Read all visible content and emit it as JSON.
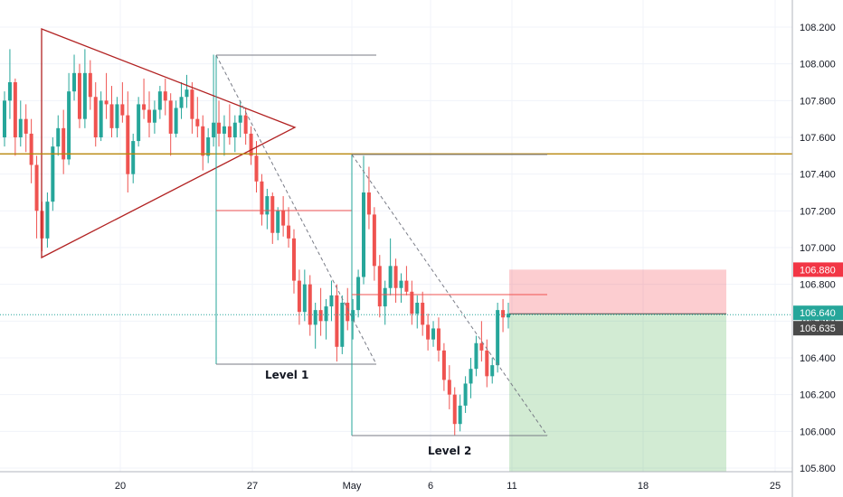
{
  "chart_data": {
    "type": "candlestick",
    "y_axis": {
      "position": "right",
      "range": [
        105.76,
        108.26
      ],
      "ticks": [
        "108.200",
        "108.000",
        "107.800",
        "107.600",
        "107.400",
        "107.200",
        "107.000",
        "106.800",
        "106.600",
        "106.400",
        "106.200",
        "106.000",
        "105.800"
      ]
    },
    "x_axis": {
      "ticks": [
        "20",
        "27",
        "May",
        "6",
        "11",
        "18",
        "25"
      ]
    },
    "grid": true,
    "price_labels": [
      {
        "value": "106.880",
        "role": "stop-loss",
        "color": "#f23645"
      },
      {
        "value": "106.640",
        "role": "entry",
        "color": "#26a69a"
      },
      {
        "value": "106.635",
        "role": "last-price",
        "color": "#4a4a4a"
      }
    ],
    "annotations": [
      "Level 1",
      "Level 2"
    ],
    "horizontal_level": 107.51,
    "candles": [
      [
        107.6,
        107.85,
        107.55,
        107.8
      ],
      [
        107.8,
        108.08,
        107.7,
        107.9
      ],
      [
        107.9,
        107.92,
        107.5,
        107.6
      ],
      [
        107.6,
        107.8,
        107.55,
        107.7
      ],
      [
        107.7,
        107.78,
        107.52,
        107.62
      ],
      [
        107.62,
        107.7,
        107.35,
        107.45
      ],
      [
        107.45,
        107.5,
        107.05,
        107.2
      ],
      [
        107.2,
        107.25,
        106.98,
        107.05
      ],
      [
        107.05,
        107.3,
        107.0,
        107.25
      ],
      [
        107.25,
        107.6,
        107.2,
        107.55
      ],
      [
        107.55,
        107.72,
        107.5,
        107.65
      ],
      [
        107.65,
        107.75,
        107.4,
        107.48
      ],
      [
        107.48,
        107.95,
        107.45,
        107.85
      ],
      [
        107.85,
        108.05,
        107.8,
        107.95
      ],
      [
        107.95,
        108.0,
        107.65,
        107.7
      ],
      [
        107.7,
        108.08,
        107.65,
        107.95
      ],
      [
        107.95,
        108.02,
        107.75,
        107.82
      ],
      [
        107.82,
        107.9,
        107.55,
        107.6
      ],
      [
        107.6,
        107.85,
        107.58,
        107.8
      ],
      [
        107.8,
        107.95,
        107.7,
        107.78
      ],
      [
        107.78,
        107.88,
        107.6,
        107.65
      ],
      [
        107.65,
        107.82,
        107.6,
        107.78
      ],
      [
        107.78,
        107.9,
        107.68,
        107.72
      ],
      [
        107.72,
        107.85,
        107.3,
        107.4
      ],
      [
        107.4,
        107.62,
        107.35,
        107.58
      ],
      [
        107.58,
        107.82,
        107.55,
        107.78
      ],
      [
        107.78,
        107.92,
        107.7,
        107.75
      ],
      [
        107.75,
        107.85,
        107.6,
        107.68
      ],
      [
        107.68,
        107.8,
        107.62,
        107.75
      ],
      [
        107.75,
        107.88,
        107.7,
        107.85
      ],
      [
        107.85,
        107.92,
        107.72,
        107.8
      ],
      [
        107.8,
        107.84,
        107.5,
        107.62
      ],
      [
        107.62,
        107.8,
        107.6,
        107.76
      ],
      [
        107.76,
        107.9,
        107.7,
        107.82
      ],
      [
        107.82,
        107.94,
        107.76,
        107.86
      ],
      [
        107.86,
        107.9,
        107.62,
        107.7
      ],
      [
        107.7,
        107.82,
        107.6,
        107.66
      ],
      [
        107.66,
        107.72,
        107.42,
        107.5
      ],
      [
        107.5,
        107.65,
        107.46,
        107.6
      ],
      [
        107.6,
        108.05,
        107.55,
        107.68
      ],
      [
        107.68,
        107.8,
        107.55,
        107.62
      ],
      [
        107.62,
        107.72,
        107.5,
        107.66
      ],
      [
        107.66,
        107.78,
        107.56,
        107.6
      ],
      [
        107.6,
        107.72,
        107.52,
        107.68
      ],
      [
        107.68,
        107.8,
        107.6,
        107.72
      ],
      [
        107.72,
        107.76,
        107.56,
        107.62
      ],
      [
        107.62,
        107.66,
        107.45,
        107.5
      ],
      [
        107.5,
        107.58,
        107.3,
        107.36
      ],
      [
        107.36,
        107.4,
        107.12,
        107.18
      ],
      [
        107.18,
        107.32,
        107.1,
        107.28
      ],
      [
        107.28,
        107.3,
        107.02,
        107.08
      ],
      [
        107.08,
        107.22,
        107.04,
        107.2
      ],
      [
        107.2,
        107.28,
        107.06,
        107.12
      ],
      [
        107.12,
        107.22,
        107.0,
        107.05
      ],
      [
        107.05,
        107.1,
        106.75,
        106.82
      ],
      [
        106.82,
        106.88,
        106.58,
        106.65
      ],
      [
        106.65,
        106.88,
        106.6,
        106.8
      ],
      [
        106.8,
        106.85,
        106.52,
        106.58
      ],
      [
        106.58,
        106.7,
        106.45,
        106.66
      ],
      [
        106.66,
        106.78,
        106.52,
        106.6
      ],
      [
        106.6,
        106.72,
        106.5,
        106.68
      ],
      [
        106.68,
        106.82,
        106.6,
        106.74
      ],
      [
        106.74,
        106.8,
        106.38,
        106.46
      ],
      [
        106.46,
        106.74,
        106.42,
        106.7
      ],
      [
        106.7,
        106.78,
        106.55,
        106.6
      ],
      [
        106.6,
        106.72,
        106.5,
        106.66
      ],
      [
        106.66,
        106.88,
        106.62,
        106.84
      ],
      [
        106.84,
        107.5,
        106.8,
        107.3
      ],
      [
        107.3,
        107.44,
        107.1,
        107.18
      ],
      [
        107.18,
        107.22,
        106.82,
        106.9
      ],
      [
        106.9,
        106.96,
        106.62,
        106.68
      ],
      [
        106.68,
        106.82,
        106.58,
        106.78
      ],
      [
        106.78,
        107.05,
        106.74,
        106.9
      ],
      [
        106.9,
        106.94,
        106.7,
        106.78
      ],
      [
        106.78,
        106.86,
        106.7,
        106.82
      ],
      [
        106.82,
        106.9,
        106.74,
        106.76
      ],
      [
        106.76,
        106.82,
        106.58,
        106.64
      ],
      [
        106.64,
        106.74,
        106.56,
        106.7
      ],
      [
        106.7,
        106.76,
        106.52,
        106.58
      ],
      [
        106.58,
        106.64,
        106.44,
        106.5
      ],
      [
        106.5,
        106.6,
        106.46,
        106.56
      ],
      [
        106.56,
        106.62,
        106.38,
        106.44
      ],
      [
        106.44,
        106.48,
        106.22,
        106.28
      ],
      [
        106.28,
        106.36,
        106.12,
        106.2
      ],
      [
        106.2,
        106.24,
        105.98,
        106.04
      ],
      [
        106.04,
        106.2,
        106.0,
        106.14
      ],
      [
        106.14,
        106.3,
        106.1,
        106.26
      ],
      [
        106.26,
        106.4,
        106.18,
        106.34
      ],
      [
        106.34,
        106.52,
        106.3,
        106.48
      ],
      [
        106.48,
        106.6,
        106.38,
        106.44
      ],
      [
        106.44,
        106.5,
        106.24,
        106.3
      ],
      [
        106.3,
        106.4,
        106.26,
        106.36
      ],
      [
        106.36,
        106.7,
        106.32,
        106.66
      ],
      [
        106.66,
        106.72,
        106.54,
        106.62
      ],
      [
        106.62,
        106.7,
        106.56,
        106.64
      ]
    ]
  }
}
